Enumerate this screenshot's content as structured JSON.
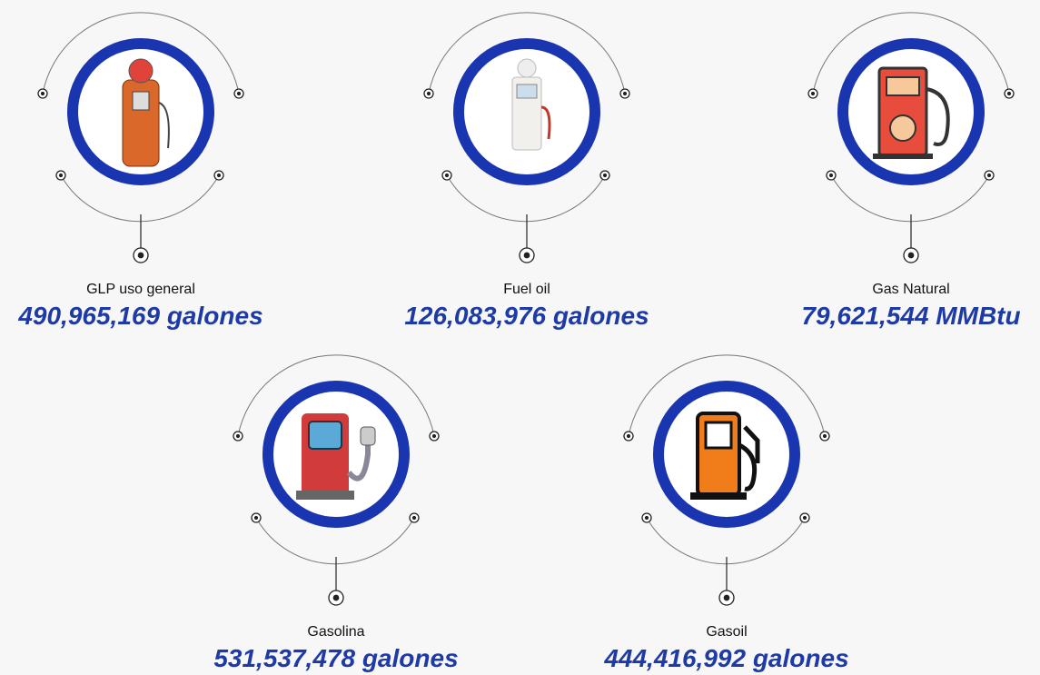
{
  "items": [
    {
      "label": "GLP uso general",
      "value": "490,965,169 galones"
    },
    {
      "label": "Fuel oil",
      "value": "126,083,976 galones"
    },
    {
      "label": "Gas Natural",
      "value": "79,621,544  MMBtu"
    },
    {
      "label": "Gasolina",
      "value": "531,537,478 galones"
    },
    {
      "label": "Gasoil",
      "value": "444,416,992 galones"
    }
  ]
}
